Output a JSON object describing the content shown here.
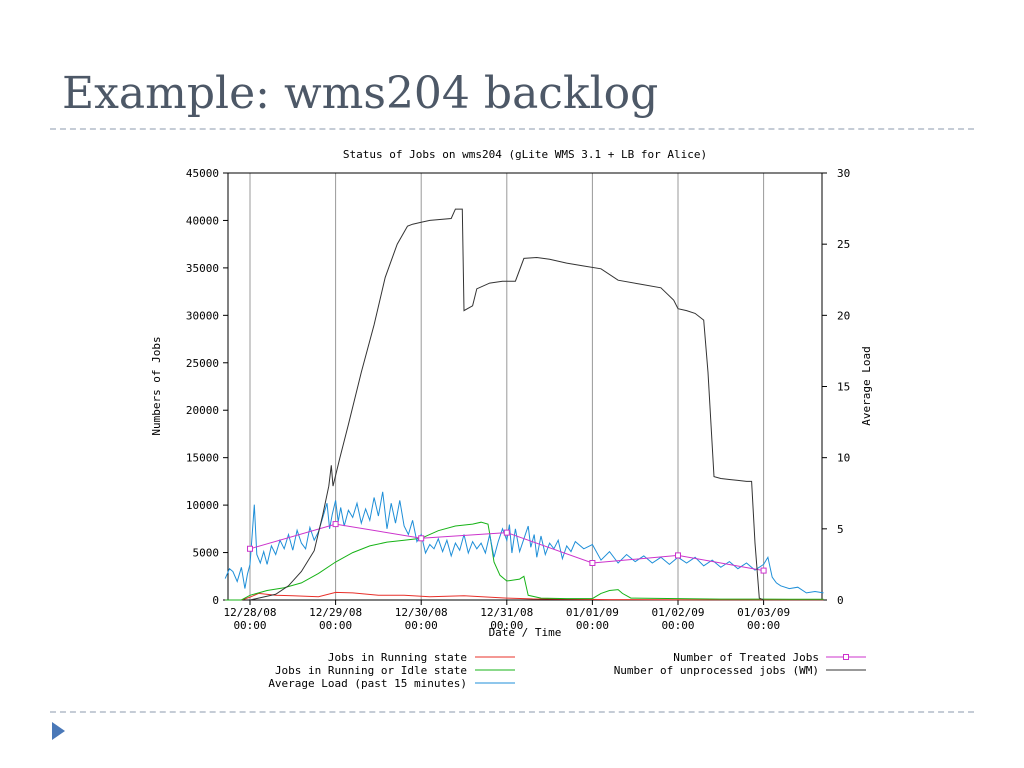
{
  "slide": {
    "title": "Example: wms204 backlog"
  },
  "chart_data": {
    "type": "line",
    "title": "Status of Jobs on wms204 (gLite WMS 3.1 + LB for Alice)",
    "xlabel": "Date / Time",
    "ylabel": "Numbers of Jobs",
    "y2label": "Average Load",
    "x_range": [
      "12/27/08 21:30",
      "12/03/09 06:30"
    ],
    "x_ticks": [
      {
        "l1": "12/28/08",
        "l2": "00:00"
      },
      {
        "l1": "12/29/08",
        "l2": "00:00"
      },
      {
        "l1": "12/30/08",
        "l2": "00:00"
      },
      {
        "l1": "12/31/08",
        "l2": "00:00"
      },
      {
        "l1": "01/01/09",
        "l2": "00:00"
      },
      {
        "l1": "01/02/09",
        "l2": "00:00"
      },
      {
        "l1": "01/03/09",
        "l2": "00:00"
      }
    ],
    "y_ticks": [
      0,
      5000,
      10000,
      15000,
      20000,
      25000,
      30000,
      35000,
      40000,
      45000
    ],
    "y2_ticks": [
      0,
      5,
      10,
      15,
      20,
      25,
      30
    ],
    "ylim": [
      0,
      45000
    ],
    "y2lim": [
      0,
      30
    ],
    "grid": true,
    "legend_placement": "bottom",
    "series": [
      {
        "name": "Jobs in Running state",
        "axis": "left",
        "color": "#e8302a",
        "points": [
          [
            -0.29,
            0
          ],
          [
            -0.1,
            0
          ],
          [
            0.0,
            300
          ],
          [
            0.1,
            700
          ],
          [
            0.3,
            500
          ],
          [
            0.5,
            450
          ],
          [
            0.8,
            350
          ],
          [
            1.0,
            800
          ],
          [
            1.2,
            750
          ],
          [
            1.5,
            500
          ],
          [
            1.8,
            500
          ],
          [
            2.1,
            350
          ],
          [
            2.5,
            450
          ],
          [
            3.0,
            200
          ],
          [
            3.3,
            120
          ],
          [
            3.8,
            80
          ],
          [
            4.2,
            40
          ],
          [
            4.5,
            40
          ],
          [
            5.0,
            30
          ],
          [
            5.5,
            20
          ],
          [
            6.0,
            20
          ],
          [
            6.7,
            20
          ]
        ]
      },
      {
        "name": "Jobs in Running or Idle state",
        "axis": "left",
        "color": "#17b317",
        "points": [
          [
            -0.29,
            0
          ],
          [
            -0.1,
            0
          ],
          [
            0.0,
            500
          ],
          [
            0.2,
            1000
          ],
          [
            0.4,
            1300
          ],
          [
            0.6,
            1800
          ],
          [
            0.8,
            2800
          ],
          [
            1.0,
            4000
          ],
          [
            1.2,
            5000
          ],
          [
            1.4,
            5700
          ],
          [
            1.6,
            6100
          ],
          [
            1.8,
            6300
          ],
          [
            2.0,
            6500
          ],
          [
            2.2,
            7300
          ],
          [
            2.4,
            7800
          ],
          [
            2.6,
            8000
          ],
          [
            2.7,
            8200
          ],
          [
            2.78,
            8000
          ],
          [
            2.8,
            7000
          ],
          [
            2.85,
            4000
          ],
          [
            2.92,
            2600
          ],
          [
            3.0,
            2000
          ],
          [
            3.15,
            2200
          ],
          [
            3.2,
            2500
          ],
          [
            3.25,
            500
          ],
          [
            3.4,
            200
          ],
          [
            3.7,
            150
          ],
          [
            4.0,
            150
          ],
          [
            4.1,
            700
          ],
          [
            4.2,
            1000
          ],
          [
            4.3,
            1100
          ],
          [
            4.35,
            700
          ],
          [
            4.45,
            200
          ],
          [
            5.0,
            150
          ],
          [
            5.5,
            100
          ],
          [
            6.0,
            100
          ],
          [
            6.3,
            80
          ],
          [
            6.7,
            80
          ]
        ]
      },
      {
        "name": "Average Load (past 15 minutes)",
        "axis": "right",
        "color": "#1f8fd8",
        "points": [
          [
            -0.29,
            1.5
          ],
          [
            -0.24,
            2.2
          ],
          [
            -0.2,
            2.0
          ],
          [
            -0.15,
            1.3
          ],
          [
            -0.1,
            2.3
          ],
          [
            -0.06,
            0.8
          ],
          [
            -0.03,
            1.8
          ],
          [
            0.0,
            2.5
          ],
          [
            0.03,
            5.0
          ],
          [
            0.05,
            6.7
          ],
          [
            0.08,
            3.2
          ],
          [
            0.12,
            2.6
          ],
          [
            0.16,
            3.4
          ],
          [
            0.2,
            2.5
          ],
          [
            0.25,
            3.8
          ],
          [
            0.3,
            3.2
          ],
          [
            0.35,
            4.2
          ],
          [
            0.4,
            3.6
          ],
          [
            0.45,
            4.6
          ],
          [
            0.5,
            3.5
          ],
          [
            0.55,
            4.9
          ],
          [
            0.6,
            4.0
          ],
          [
            0.65,
            3.6
          ],
          [
            0.7,
            5.1
          ],
          [
            0.75,
            4.2
          ],
          [
            0.8,
            4.8
          ],
          [
            0.85,
            5.8
          ],
          [
            0.9,
            6.8
          ],
          [
            0.93,
            5.0
          ],
          [
            0.96,
            6.0
          ],
          [
            1.0,
            7.0
          ],
          [
            1.03,
            5.5
          ],
          [
            1.06,
            6.5
          ],
          [
            1.1,
            5.2
          ],
          [
            1.15,
            6.3
          ],
          [
            1.2,
            5.8
          ],
          [
            1.25,
            6.8
          ],
          [
            1.3,
            5.4
          ],
          [
            1.35,
            6.4
          ],
          [
            1.4,
            5.6
          ],
          [
            1.45,
            7.2
          ],
          [
            1.5,
            5.9
          ],
          [
            1.55,
            7.6
          ],
          [
            1.6,
            5.0
          ],
          [
            1.65,
            6.8
          ],
          [
            1.7,
            5.4
          ],
          [
            1.75,
            7.0
          ],
          [
            1.8,
            5.2
          ],
          [
            1.85,
            4.6
          ],
          [
            1.9,
            5.6
          ],
          [
            1.95,
            4.1
          ],
          [
            2.0,
            4.6
          ],
          [
            2.05,
            3.3
          ],
          [
            2.1,
            3.9
          ],
          [
            2.15,
            3.6
          ],
          [
            2.2,
            4.3
          ],
          [
            2.25,
            3.4
          ],
          [
            2.3,
            4.2
          ],
          [
            2.35,
            3.1
          ],
          [
            2.4,
            4.0
          ],
          [
            2.45,
            3.5
          ],
          [
            2.5,
            4.6
          ],
          [
            2.55,
            3.3
          ],
          [
            2.6,
            4.1
          ],
          [
            2.65,
            3.6
          ],
          [
            2.7,
            4.0
          ],
          [
            2.75,
            3.3
          ],
          [
            2.8,
            4.6
          ],
          [
            2.85,
            3.0
          ],
          [
            2.9,
            4.1
          ],
          [
            2.95,
            5.0
          ],
          [
            3.0,
            4.2
          ],
          [
            3.03,
            5.3
          ],
          [
            3.06,
            3.3
          ],
          [
            3.1,
            5.0
          ],
          [
            3.15,
            3.4
          ],
          [
            3.2,
            4.3
          ],
          [
            3.25,
            5.2
          ],
          [
            3.28,
            3.7
          ],
          [
            3.32,
            4.6
          ],
          [
            3.35,
            3.0
          ],
          [
            3.4,
            4.5
          ],
          [
            3.45,
            3.2
          ],
          [
            3.5,
            4.0
          ],
          [
            3.55,
            3.6
          ],
          [
            3.6,
            4.2
          ],
          [
            3.65,
            2.9
          ],
          [
            3.7,
            3.8
          ],
          [
            3.75,
            3.4
          ],
          [
            3.8,
            4.1
          ],
          [
            3.9,
            3.6
          ],
          [
            4.0,
            3.9
          ],
          [
            4.1,
            2.8
          ],
          [
            4.2,
            3.4
          ],
          [
            4.3,
            2.6
          ],
          [
            4.4,
            3.2
          ],
          [
            4.5,
            2.7
          ],
          [
            4.6,
            3.1
          ],
          [
            4.7,
            2.6
          ],
          [
            4.8,
            3.0
          ],
          [
            4.9,
            2.5
          ],
          [
            5.0,
            3.0
          ],
          [
            5.1,
            2.6
          ],
          [
            5.2,
            3.0
          ],
          [
            5.3,
            2.4
          ],
          [
            5.4,
            2.8
          ],
          [
            5.5,
            2.3
          ],
          [
            5.6,
            2.7
          ],
          [
            5.7,
            2.2
          ],
          [
            5.8,
            2.6
          ],
          [
            5.9,
            2.1
          ],
          [
            6.0,
            2.5
          ],
          [
            6.05,
            3.0
          ],
          [
            6.1,
            1.6
          ],
          [
            6.15,
            1.2
          ],
          [
            6.2,
            1.0
          ],
          [
            6.3,
            0.8
          ],
          [
            6.4,
            0.9
          ],
          [
            6.5,
            0.5
          ],
          [
            6.6,
            0.6
          ],
          [
            6.7,
            0.5
          ]
        ]
      },
      {
        "name": "Number of Treated Jobs",
        "axis": "left",
        "color": "#cc33cc",
        "markers": true,
        "points": [
          [
            0.0,
            5400
          ],
          [
            1.0,
            8000
          ],
          [
            2.0,
            6500
          ],
          [
            3.0,
            7100
          ],
          [
            4.0,
            3900
          ],
          [
            5.0,
            4700
          ],
          [
            6.0,
            3100
          ]
        ]
      },
      {
        "name": "Number of unprocessed jobs (WM)",
        "axis": "left",
        "color": "#333333",
        "points": [
          [
            0.0,
            0
          ],
          [
            0.1,
            200
          ],
          [
            0.3,
            600
          ],
          [
            0.45,
            1500
          ],
          [
            0.6,
            3000
          ],
          [
            0.75,
            5200
          ],
          [
            0.85,
            9000
          ],
          [
            0.92,
            12000
          ],
          [
            0.95,
            14200
          ],
          [
            0.97,
            12000
          ],
          [
            1.05,
            15000
          ],
          [
            1.15,
            18500
          ],
          [
            1.3,
            24000
          ],
          [
            1.45,
            29000
          ],
          [
            1.58,
            34000
          ],
          [
            1.72,
            37500
          ],
          [
            1.84,
            39400
          ],
          [
            1.9,
            39600
          ],
          [
            2.0,
            39800
          ],
          [
            2.1,
            40000
          ],
          [
            2.35,
            40200
          ],
          [
            2.4,
            41200
          ],
          [
            2.48,
            41200
          ],
          [
            2.5,
            30500
          ],
          [
            2.6,
            31000
          ],
          [
            2.65,
            32800
          ],
          [
            2.8,
            33400
          ],
          [
            2.95,
            33600
          ],
          [
            3.1,
            33600
          ],
          [
            3.2,
            36000
          ],
          [
            3.35,
            36100
          ],
          [
            3.5,
            35900
          ],
          [
            3.7,
            35500
          ],
          [
            3.9,
            35200
          ],
          [
            4.1,
            34900
          ],
          [
            4.3,
            33700
          ],
          [
            4.55,
            33300
          ],
          [
            4.8,
            32900
          ],
          [
            4.95,
            31600
          ],
          [
            5.0,
            30700
          ],
          [
            5.1,
            30500
          ],
          [
            5.2,
            30200
          ],
          [
            5.3,
            29500
          ],
          [
            5.35,
            24000
          ],
          [
            5.42,
            13000
          ],
          [
            5.5,
            12800
          ],
          [
            5.6,
            12700
          ],
          [
            5.7,
            12600
          ],
          [
            5.8,
            12500
          ],
          [
            5.86,
            12500
          ],
          [
            5.9,
            6000
          ],
          [
            5.95,
            200
          ],
          [
            6.0,
            0
          ]
        ]
      }
    ]
  }
}
